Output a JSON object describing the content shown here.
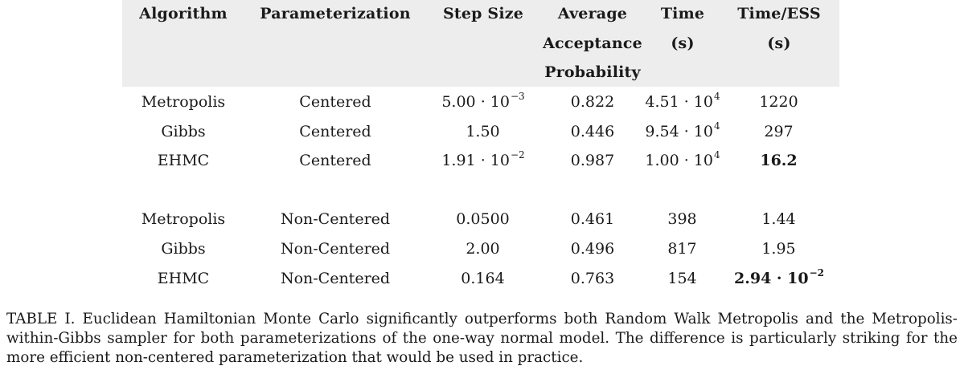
{
  "table": {
    "headers": {
      "algorithm": "Algorithm",
      "parameterization": "Parameterization",
      "step_size": "Step Size",
      "acceptance": [
        "Average",
        "Acceptance",
        "Probability"
      ],
      "time": [
        "Time",
        "(s)"
      ],
      "time_ess": [
        "Time/ESS",
        "(s)"
      ]
    },
    "rows": [
      {
        "algorithm": "Metropolis",
        "parameterization": "Centered",
        "step_mant": "5.00 · 10",
        "step_exp": "−3",
        "acceptance": "0.822",
        "time_mant": "4.51 · 10",
        "time_exp": "4",
        "time_ess_mant": "1220",
        "time_ess_exp": ""
      },
      {
        "algorithm": "Gibbs",
        "parameterization": "Centered",
        "step_mant": "1.50",
        "step_exp": "",
        "acceptance": "0.446",
        "time_mant": "9.54 · 10",
        "time_exp": "4",
        "time_ess_mant": "297",
        "time_ess_exp": ""
      },
      {
        "algorithm": "EHMC",
        "parameterization": "Centered",
        "step_mant": "1.91 · 10",
        "step_exp": "−2",
        "acceptance": "0.987",
        "time_mant": "1.00 · 10",
        "time_exp": "4",
        "time_ess_mant": "16.2",
        "time_ess_exp": ""
      },
      {
        "algorithm": "Metropolis",
        "parameterization": "Non-Centered",
        "step_mant": "0.0500",
        "step_exp": "",
        "acceptance": "0.461",
        "time_mant": "398",
        "time_exp": "",
        "time_ess_mant": "1.44",
        "time_ess_exp": ""
      },
      {
        "algorithm": "Gibbs",
        "parameterization": "Non-Centered",
        "step_mant": "2.00",
        "step_exp": "",
        "acceptance": "0.496",
        "time_mant": "817",
        "time_exp": "",
        "time_ess_mant": "1.95",
        "time_ess_exp": ""
      },
      {
        "algorithm": "EHMC",
        "parameterization": "Non-Centered",
        "step_mant": "0.164",
        "step_exp": "",
        "acceptance": "0.763",
        "time_mant": "154",
        "time_exp": "",
        "time_ess_mant": "2.94 · 10",
        "time_ess_exp": "−2"
      }
    ]
  },
  "caption": "TABLE I. Euclidean Hamiltonian Monte Carlo significantly outperforms both Random Walk Metropolis and the Metropolis-within-Gibbs sampler for both parameterizations of the one-way normal model. The difference is particularly striking for the more efficient non-centered parameterization that would be used in practice."
}
